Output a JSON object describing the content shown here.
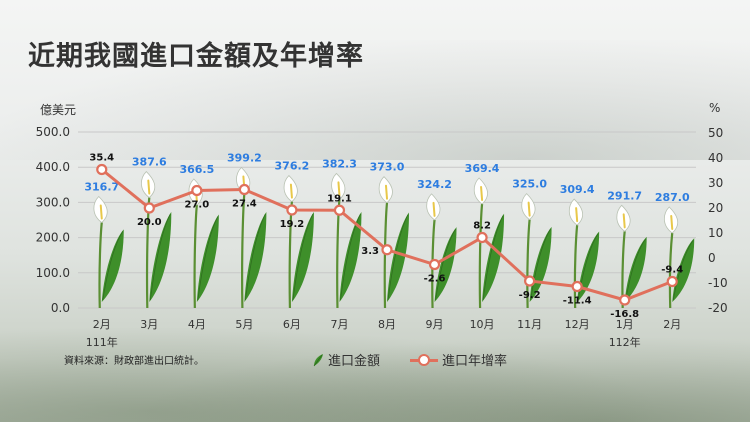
{
  "title": "近期我國進口金額及年增率",
  "source_note": "資料來源：財政部進出口統計。",
  "chart_data": {
    "type": "bar",
    "categories": [
      "2月",
      "3月",
      "4月",
      "5月",
      "6月",
      "7月",
      "8月",
      "9月",
      "10月",
      "11月",
      "12月",
      "1月",
      "2月"
    ],
    "year_labels": [
      "111年",
      "",
      "",
      "",
      "",
      "",
      "",
      "",
      "",
      "",
      "",
      "112年",
      ""
    ],
    "series": [
      {
        "name": "進口金額",
        "axis": "left",
        "mark": "calla-lily-flower",
        "color": "#2e7de0",
        "values": [
          316.7,
          387.6,
          366.5,
          399.2,
          376.2,
          382.3,
          373.0,
          324.2,
          369.4,
          325.0,
          309.4,
          291.7,
          287.0
        ]
      },
      {
        "name": "進口年增率",
        "axis": "right",
        "type": "line",
        "color": "#e0705c",
        "values": [
          35.4,
          20.0,
          27.0,
          27.4,
          19.2,
          19.1,
          3.3,
          -2.6,
          8.2,
          -9.2,
          -11.4,
          -16.8,
          -9.4
        ]
      }
    ],
    "ylabel_left": "億美元",
    "ylabel_right": "%",
    "ylim_left": [
      0,
      500
    ],
    "ylim_right": [
      -20,
      50
    ],
    "yticks_left": [
      "500.0",
      "400.0",
      "300.0",
      "200.0",
      "100.0",
      "0.0"
    ],
    "yticks_right": [
      "50",
      "40",
      "30",
      "20",
      "10",
      "0",
      "-10",
      "-20"
    ],
    "grid": true,
    "legend": "bottom"
  }
}
